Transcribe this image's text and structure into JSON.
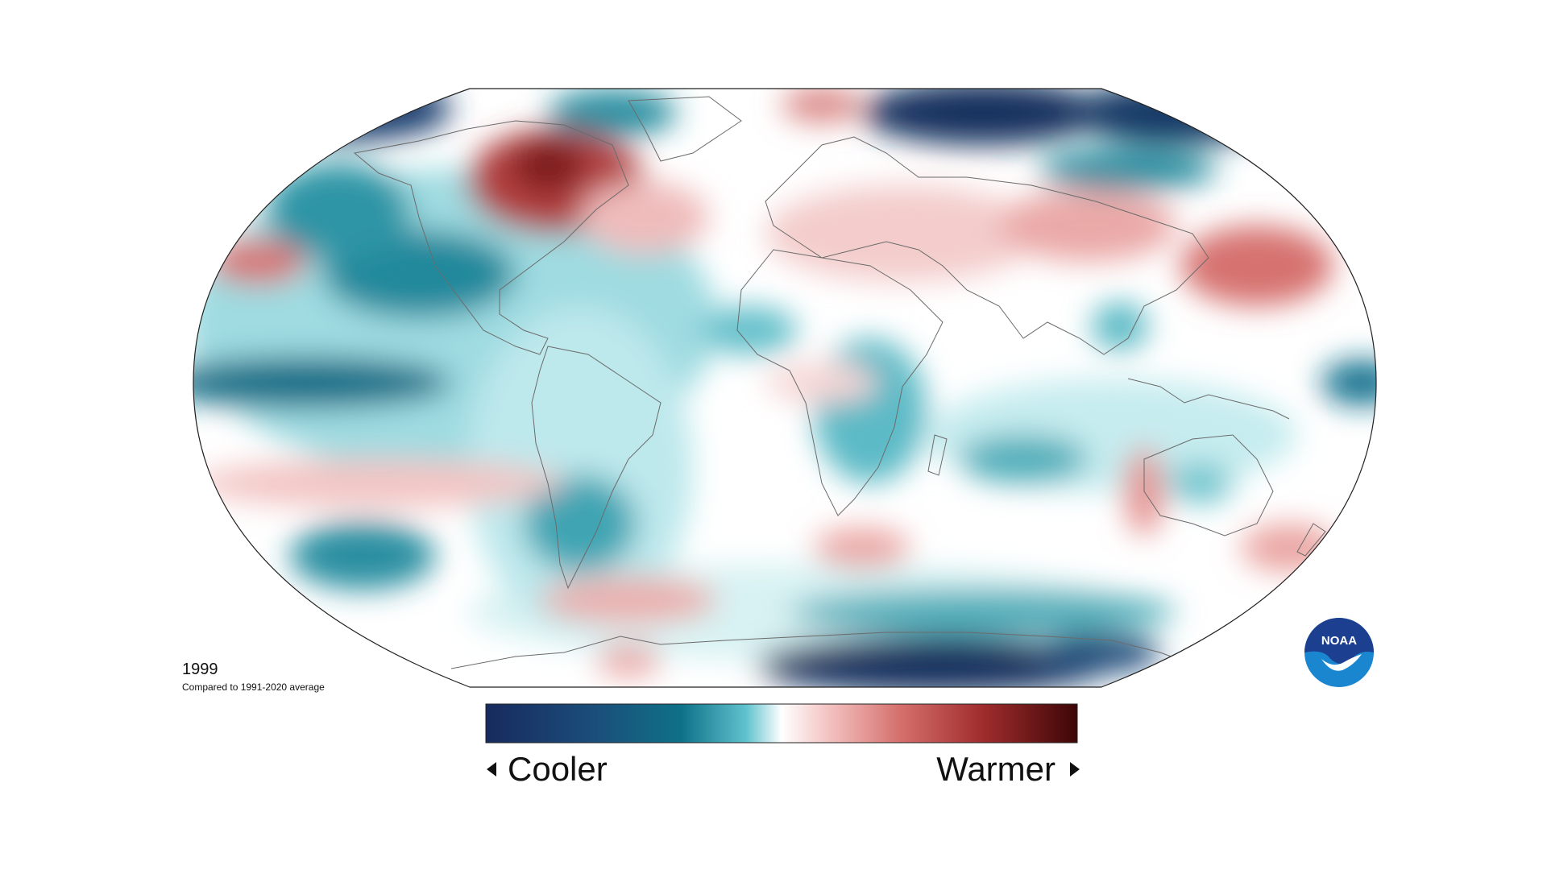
{
  "map": {
    "year": "1999",
    "baseline": "Compared to 1991-2020 average",
    "projection": "Robinson",
    "variable": "surface temperature anomaly"
  },
  "legend": {
    "cooler_label": "Cooler",
    "warmer_label": "Warmer",
    "colors": [
      "#172a5e",
      "#0f6e87",
      "#5cc0cc",
      "#d6f3f4",
      "#ffffff",
      "#f6cfcf",
      "#d9706e",
      "#a52d2f",
      "#4a0a0a"
    ]
  },
  "logo": {
    "text": "NOAA",
    "icon": "noaa-logo-icon",
    "colors": [
      "#1c3f8f",
      "#1a86d0",
      "#ffffff"
    ]
  }
}
